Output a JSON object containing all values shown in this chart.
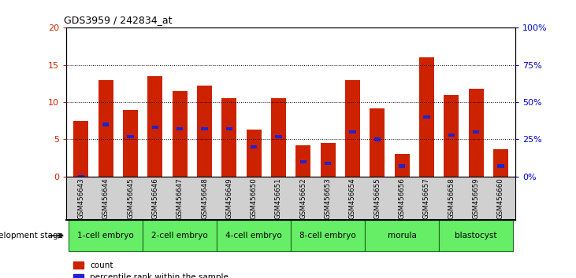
{
  "title": "GDS3959 / 242834_at",
  "samples": [
    "GSM456643",
    "GSM456644",
    "GSM456645",
    "GSM456646",
    "GSM456647",
    "GSM456648",
    "GSM456649",
    "GSM456650",
    "GSM456651",
    "GSM456652",
    "GSM456653",
    "GSM456654",
    "GSM456655",
    "GSM456656",
    "GSM456657",
    "GSM456658",
    "GSM456659",
    "GSM456660"
  ],
  "counts": [
    7.5,
    13.0,
    9.0,
    13.5,
    11.5,
    12.2,
    10.5,
    6.3,
    10.5,
    4.2,
    4.5,
    13.0,
    9.2,
    3.0,
    16.0,
    11.0,
    11.8,
    3.7
  ],
  "percentile_ranks": [
    0,
    35,
    27,
    33,
    32,
    32,
    32,
    20,
    27,
    10,
    9,
    30,
    25,
    7,
    40,
    28,
    30,
    7
  ],
  "bar_color": "#cc2200",
  "pct_color": "#2222cc",
  "ylim_left": [
    0,
    20
  ],
  "ylim_right": [
    0,
    100
  ],
  "yticks_left": [
    0,
    5,
    10,
    15,
    20
  ],
  "yticks_right": [
    0,
    25,
    50,
    75,
    100
  ],
  "ytick_labels_right": [
    "0%",
    "25%",
    "50%",
    "75%",
    "100%"
  ],
  "stages": [
    {
      "label": "1-cell embryo",
      "start": 0,
      "end": 3
    },
    {
      "label": "2-cell embryo",
      "start": 3,
      "end": 6
    },
    {
      "label": "4-cell embryo",
      "start": 6,
      "end": 9
    },
    {
      "label": "8-cell embryo",
      "start": 9,
      "end": 12
    },
    {
      "label": "morula",
      "start": 12,
      "end": 15
    },
    {
      "label": "blastocyst",
      "start": 15,
      "end": 18
    }
  ],
  "stage_color": "#66ee66",
  "stage_border_color": "#226622",
  "dev_stage_label": "development stage",
  "legend_count_label": "count",
  "legend_pct_label": "percentile rank within the sample",
  "background_color": "#ffffff",
  "tick_label_color_left": "#cc2200",
  "tick_label_color_right": "#0000cc",
  "sample_bg_color": "#d0d0d0",
  "plot_bg_color": "#ffffff"
}
